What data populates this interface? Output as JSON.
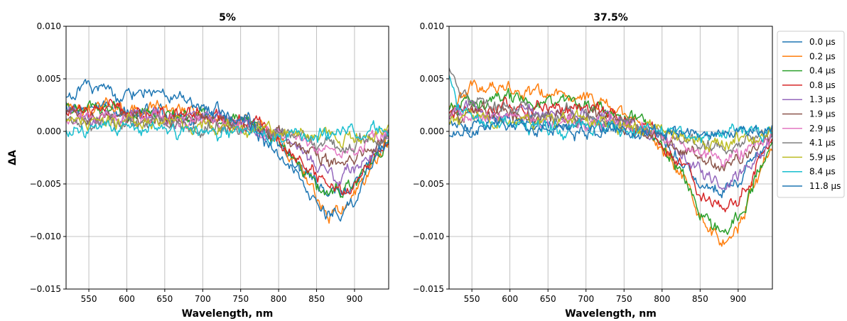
{
  "chart_data": [
    {
      "type": "line",
      "title": "5%",
      "xlabel": "Wavelength, nm",
      "ylabel": "ΔA",
      "xlim": [
        520,
        945
      ],
      "ylim": [
        -0.015,
        0.01
      ],
      "xticks": [
        550,
        600,
        650,
        700,
        750,
        800,
        850,
        900
      ],
      "yticks": [
        -0.015,
        -0.01,
        -0.005,
        0.0,
        0.005,
        0.01
      ],
      "ytick_labels": [
        "−0.015",
        "−0.010",
        "−0.005",
        "0.000",
        "0.005",
        "0.010"
      ],
      "grid": true,
      "series": [
        {
          "name": "0.0 μs",
          "x": [
            520,
            600,
            700,
            760,
            800,
            830,
            850,
            865,
            880,
            900,
            920,
            945
          ],
          "y": [
            0.0025,
            0.002,
            0.0012,
            0.0008,
            -0.0008,
            -0.0035,
            -0.0055,
            -0.006,
            -0.0057,
            -0.005,
            -0.003,
            -0.0005
          ]
        },
        {
          "name": "0.2 μs",
          "x": [
            520,
            600,
            700,
            760,
            800,
            830,
            850,
            865,
            880,
            900,
            920,
            945
          ],
          "y": [
            0.0025,
            0.0022,
            0.0018,
            0.001,
            -0.0005,
            -0.004,
            -0.0065,
            -0.0078,
            -0.0075,
            -0.006,
            -0.0035,
            -0.0005
          ]
        },
        {
          "name": "0.4 μs",
          "x": [
            520,
            600,
            700,
            760,
            800,
            830,
            850,
            865,
            880,
            900,
            920,
            945
          ],
          "y": [
            0.0022,
            0.0018,
            0.0012,
            0.0008,
            -0.0008,
            -0.0035,
            -0.0055,
            -0.006,
            -0.0058,
            -0.0052,
            -0.003,
            -0.0005
          ]
        },
        {
          "name": "0.8 μs",
          "x": [
            520,
            600,
            700,
            760,
            800,
            830,
            850,
            865,
            880,
            900,
            920,
            945
          ],
          "y": [
            0.002,
            0.002,
            0.0015,
            0.0008,
            -0.0005,
            -0.003,
            -0.0045,
            -0.0055,
            -0.0058,
            -0.005,
            -0.003,
            -0.0005
          ]
        },
        {
          "name": "1.3 μs",
          "x": [
            520,
            600,
            700,
            760,
            800,
            830,
            850,
            865,
            880,
            900,
            920,
            945
          ],
          "y": [
            0.0018,
            0.0015,
            0.0012,
            0.0006,
            -0.0005,
            -0.002,
            -0.0035,
            -0.004,
            -0.0042,
            -0.0035,
            -0.002,
            -0.0003
          ]
        },
        {
          "name": "1.9 μs",
          "x": [
            520,
            600,
            700,
            760,
            800,
            830,
            850,
            865,
            880,
            900,
            920,
            945
          ],
          "y": [
            0.0015,
            0.0013,
            0.001,
            0.0005,
            -0.0003,
            -0.0015,
            -0.0025,
            -0.0028,
            -0.003,
            -0.0025,
            -0.0015,
            -0.0002
          ]
        },
        {
          "name": "2.9 μs",
          "x": [
            520,
            600,
            700,
            760,
            800,
            830,
            850,
            865,
            880,
            900,
            920,
            945
          ],
          "y": [
            0.0012,
            0.001,
            0.0008,
            0.0004,
            -0.0002,
            -0.001,
            -0.0018,
            -0.002,
            -0.0022,
            -0.0018,
            -0.001,
            -0.0002
          ]
        },
        {
          "name": "4.1 μs",
          "x": [
            520,
            600,
            700,
            760,
            800,
            830,
            850,
            865,
            880,
            900,
            920,
            945
          ],
          "y": [
            0.001,
            0.0008,
            0.0006,
            0.0003,
            -0.0001,
            -0.0006,
            -0.001,
            -0.0012,
            -0.0013,
            -0.001,
            -0.0006,
            -0.0001
          ]
        },
        {
          "name": "5.9 μs",
          "x": [
            520,
            600,
            700,
            760,
            800,
            830,
            850,
            865,
            880,
            900,
            920,
            945
          ],
          "y": [
            0.0008,
            0.0008,
            0.0005,
            0.0002,
            0.0,
            -0.0003,
            -0.0005,
            -0.0006,
            -0.0006,
            -0.0004,
            -0.0002,
            0.0
          ]
        },
        {
          "name": "8.4 μs",
          "x": [
            520,
            600,
            700,
            760,
            800,
            830,
            850,
            865,
            880,
            900,
            920,
            945
          ],
          "y": [
            0.0,
            0.0,
            -0.0003,
            -0.0005,
            -0.0003,
            -0.0002,
            -0.0001,
            -0.0001,
            -0.0001,
            0.0,
            0.0,
            0.0
          ]
        },
        {
          "name": "11.8 μs",
          "x": [
            520,
            545,
            600,
            650,
            700,
            760,
            800,
            830,
            850,
            865,
            880,
            900,
            920,
            945
          ],
          "y": [
            0.003,
            0.004,
            0.0035,
            0.0035,
            0.0025,
            0.001,
            -0.002,
            -0.005,
            -0.0072,
            -0.0078,
            -0.0078,
            -0.0065,
            -0.004,
            -0.0005
          ]
        }
      ]
    },
    {
      "type": "line",
      "title": "37.5%",
      "xlabel": "Wavelength, nm",
      "ylabel": "",
      "xlim": [
        520,
        945
      ],
      "ylim": [
        -0.015,
        0.01
      ],
      "xticks": [
        550,
        600,
        650,
        700,
        750,
        800,
        850,
        900
      ],
      "yticks": [
        -0.015,
        -0.01,
        -0.005,
        0.0,
        0.005,
        0.01
      ],
      "ytick_labels": [
        "−0.015",
        "−0.010",
        "−0.005",
        "0.000",
        "0.005",
        "0.010"
      ],
      "grid": true,
      "series": [
        {
          "name": "0.0 μs",
          "x": [
            520,
            600,
            700,
            760,
            800,
            830,
            850,
            865,
            880,
            900,
            920,
            945
          ],
          "y": [
            0.001,
            0.001,
            0.0008,
            0.0005,
            -0.0005,
            -0.003,
            -0.005,
            -0.0055,
            -0.0055,
            -0.0045,
            -0.0025,
            0.0
          ]
        },
        {
          "name": "0.2 μs",
          "x": [
            520,
            560,
            600,
            650,
            700,
            760,
            800,
            830,
            850,
            865,
            880,
            900,
            920,
            945
          ],
          "y": [
            0.003,
            0.0045,
            0.004,
            0.0035,
            0.003,
            0.0015,
            -0.0015,
            -0.005,
            -0.008,
            -0.01,
            -0.0108,
            -0.009,
            -0.0055,
            -0.001
          ]
        },
        {
          "name": "0.4 μs",
          "x": [
            520,
            600,
            700,
            760,
            800,
            830,
            850,
            865,
            880,
            900,
            920,
            945
          ],
          "y": [
            0.0025,
            0.003,
            0.0025,
            0.0012,
            -0.001,
            -0.0045,
            -0.0075,
            -0.0092,
            -0.0095,
            -0.008,
            -0.005,
            -0.0008
          ]
        },
        {
          "name": "0.8 μs",
          "x": [
            520,
            600,
            700,
            760,
            800,
            830,
            850,
            865,
            880,
            900,
            920,
            945
          ],
          "y": [
            0.002,
            0.0025,
            0.0022,
            0.001,
            -0.0008,
            -0.0035,
            -0.0058,
            -0.007,
            -0.0073,
            -0.0062,
            -0.004,
            -0.0006
          ]
        },
        {
          "name": "1.3 μs",
          "x": [
            520,
            600,
            700,
            760,
            800,
            830,
            850,
            865,
            880,
            900,
            920,
            945
          ],
          "y": [
            0.0018,
            0.002,
            0.0018,
            0.0008,
            -0.0006,
            -0.0025,
            -0.004,
            -0.0048,
            -0.005,
            -0.0042,
            -0.0028,
            -0.0005
          ]
        },
        {
          "name": "1.9 μs",
          "x": [
            520,
            600,
            700,
            760,
            800,
            830,
            850,
            865,
            880,
            900,
            920,
            945
          ],
          "y": [
            0.0016,
            0.0016,
            0.0014,
            0.0006,
            -0.0004,
            -0.0018,
            -0.0028,
            -0.0034,
            -0.0036,
            -0.003,
            -0.002,
            -0.0004
          ]
        },
        {
          "name": "2.9 μs",
          "x": [
            520,
            600,
            700,
            760,
            800,
            830,
            850,
            865,
            880,
            900,
            920,
            945
          ],
          "y": [
            0.0015,
            0.0013,
            0.0011,
            0.0005,
            -0.0003,
            -0.0012,
            -0.002,
            -0.0025,
            -0.0026,
            -0.0022,
            -0.0014,
            -0.0003
          ]
        },
        {
          "name": "4.1 μs",
          "x": [
            520,
            535,
            600,
            700,
            760,
            800,
            830,
            850,
            865,
            880,
            900,
            920,
            945
          ],
          "y": [
            0.0065,
            0.004,
            0.002,
            0.0015,
            0.0005,
            -0.0002,
            -0.0008,
            -0.0012,
            -0.0015,
            -0.0016,
            -0.0014,
            -0.0008,
            -0.0002
          ]
        },
        {
          "name": "5.9 μs",
          "x": [
            520,
            600,
            700,
            760,
            800,
            830,
            850,
            865,
            880,
            900,
            920,
            945
          ],
          "y": [
            0.0012,
            0.0012,
            0.001,
            0.0004,
            -0.0001,
            -0.0005,
            -0.0008,
            -0.001,
            -0.001,
            -0.0008,
            -0.0005,
            -0.0001
          ]
        },
        {
          "name": "8.4 μs",
          "x": [
            520,
            530,
            560,
            600,
            700,
            760,
            800,
            830,
            850,
            865,
            880,
            900,
            920,
            945
          ],
          "y": [
            0.0055,
            0.0025,
            0.001,
            0.0005,
            0.0003,
            0.0001,
            0.0,
            -0.0001,
            -0.0002,
            -0.0002,
            -0.0002,
            -0.0001,
            0.0,
            0.0
          ]
        },
        {
          "name": "11.8 μs",
          "x": [
            520,
            560,
            600,
            650,
            700,
            760,
            800,
            830,
            850,
            865,
            880,
            900,
            920,
            945
          ],
          "y": [
            0.0,
            0.0005,
            0.0005,
            0.0003,
            0.0002,
            0.0,
            0.0,
            0.0,
            -0.0001,
            -0.0001,
            -0.0001,
            0.0,
            0.0,
            0.0003
          ]
        }
      ]
    }
  ],
  "legend": {
    "entries": [
      "0.0 μs",
      "0.2 μs",
      "0.4 μs",
      "0.8 μs",
      "1.3 μs",
      "1.9 μs",
      "2.9 μs",
      "4.1 μs",
      "5.9 μs",
      "8.4 μs",
      "11.8 μs"
    ],
    "placement": "right of right panel"
  },
  "colors": [
    "#1f77b4",
    "#ff7f0e",
    "#2ca02c",
    "#d62728",
    "#9467bd",
    "#8c564b",
    "#e377c2",
    "#7f7f7f",
    "#bcbd22",
    "#17becf",
    "#1f77b4"
  ]
}
